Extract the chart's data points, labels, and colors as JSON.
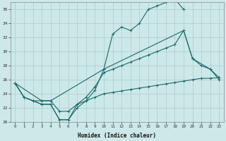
{
  "xlabel": "Humidex (Indice chaleur)",
  "bg_color": "#cde8e8",
  "grid_color": "#aacccc",
  "line_color": "#1a6b6b",
  "ylim": [
    20,
    37
  ],
  "xlim": [
    -0.5,
    23.5
  ],
  "yticks": [
    20,
    22,
    24,
    26,
    28,
    30,
    32,
    34,
    36
  ],
  "xticks": [
    0,
    1,
    2,
    3,
    4,
    5,
    6,
    7,
    8,
    9,
    10,
    11,
    12,
    13,
    14,
    15,
    16,
    17,
    18,
    19,
    20,
    21,
    22,
    23
  ],
  "line1_x": [
    0,
    1,
    2,
    3,
    4,
    5,
    6,
    7,
    8,
    9,
    10,
    11,
    12,
    13,
    14,
    15,
    16,
    17,
    18,
    19
  ],
  "line1_y": [
    25.5,
    23.5,
    23.0,
    22.5,
    22.5,
    20.3,
    20.3,
    22.0,
    23.0,
    24.5,
    27.5,
    32.5,
    33.5,
    33.0,
    34.0,
    36.0,
    36.5,
    37.0,
    37.5,
    36.0
  ],
  "line2_x": [
    0,
    1,
    2,
    3,
    4,
    5,
    6,
    7,
    8,
    9,
    10,
    11,
    12,
    13,
    14,
    15,
    16,
    17,
    18,
    19,
    20,
    21,
    22,
    23
  ],
  "line2_y": [
    25.5,
    23.5,
    23.0,
    22.5,
    22.5,
    20.3,
    20.3,
    22.5,
    23.5,
    25.0,
    27.0,
    27.5,
    28.0,
    28.5,
    29.0,
    29.5,
    30.0,
    30.5,
    31.0,
    33.0,
    29.0,
    28.0,
    27.5,
    26.0
  ],
  "line3_x": [
    0,
    1,
    2,
    3,
    4,
    5,
    6,
    7,
    8,
    9,
    10,
    11,
    12,
    13,
    14,
    15,
    16,
    17,
    18,
    19,
    20,
    21,
    22,
    23
  ],
  "line3_y": [
    25.5,
    23.5,
    23.0,
    23.0,
    23.0,
    21.5,
    21.5,
    22.5,
    23.0,
    23.5,
    24.0,
    24.2,
    24.4,
    24.6,
    24.8,
    25.0,
    25.2,
    25.4,
    25.6,
    25.8,
    26.0,
    26.2,
    26.2,
    26.3
  ],
  "line4_x": [
    0,
    3,
    4,
    10,
    19,
    20,
    22,
    23
  ],
  "line4_y": [
    25.5,
    23.0,
    23.0,
    27.5,
    33.0,
    29.0,
    27.5,
    26.3
  ]
}
